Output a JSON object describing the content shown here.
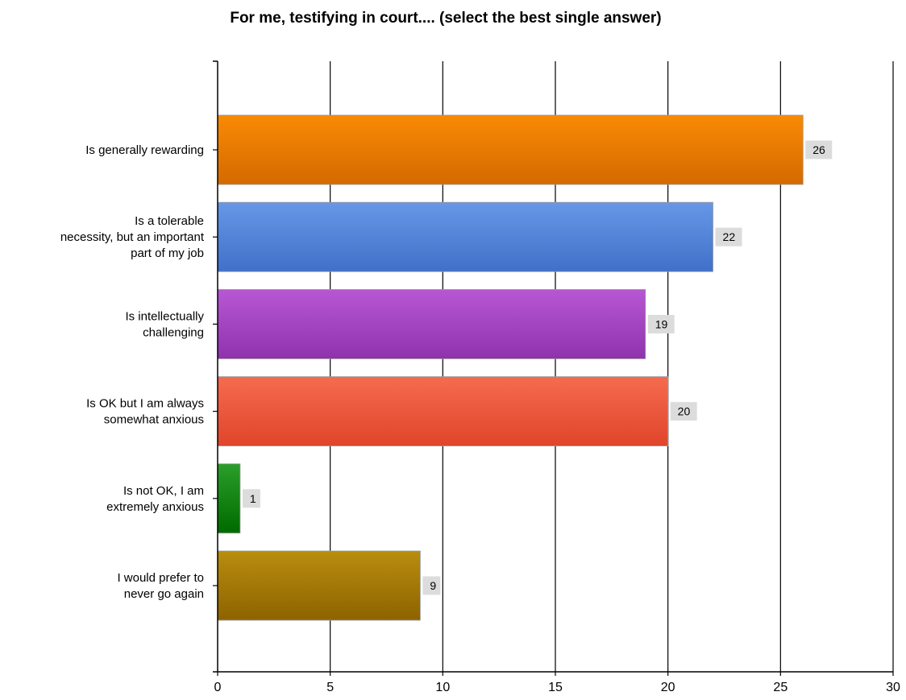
{
  "chart_data": {
    "type": "bar",
    "orientation": "horizontal",
    "title": "For me, testifying in court.... (select the best single answer)",
    "categories": [
      "Is generally rewarding",
      "Is a tolerable necessity, but an important part of my job",
      "Is intellectually challenging",
      "Is OK but I am always somewhat anxious",
      "Is not OK, I am extremely anxious",
      "I would prefer to never go again"
    ],
    "category_lines": [
      [
        "Is generally rewarding"
      ],
      [
        "Is a tolerable",
        "necessity, but an important",
        "part of my job"
      ],
      [
        "Is intellectually",
        "challenging"
      ],
      [
        "Is OK but I am always",
        "somewhat anxious"
      ],
      [
        "Is not OK, I am",
        "extremely anxious"
      ],
      [
        "I would prefer to",
        "never go again"
      ]
    ],
    "values": [
      26,
      22,
      19,
      20,
      1,
      9
    ],
    "value_labels": [
      "26",
      "22",
      "19",
      "20",
      "1",
      "9"
    ],
    "xlim": [
      0,
      30
    ],
    "xticks": [
      "0",
      "5",
      "10",
      "15",
      "20",
      "25",
      "30"
    ],
    "grid": true,
    "legend": "none",
    "colors": [
      {
        "top": "#f98a05",
        "bottom": "#d46a00"
      },
      {
        "top": "#6797e6",
        "bottom": "#3f71c9"
      },
      {
        "top": "#b857d3",
        "bottom": "#8f33ad"
      },
      {
        "top": "#f56b4e",
        "bottom": "#e0452b"
      },
      {
        "top": "#2a9e2a",
        "bottom": "#006a00"
      },
      {
        "top": "#b98d0f",
        "bottom": "#8d6300"
      }
    ]
  }
}
